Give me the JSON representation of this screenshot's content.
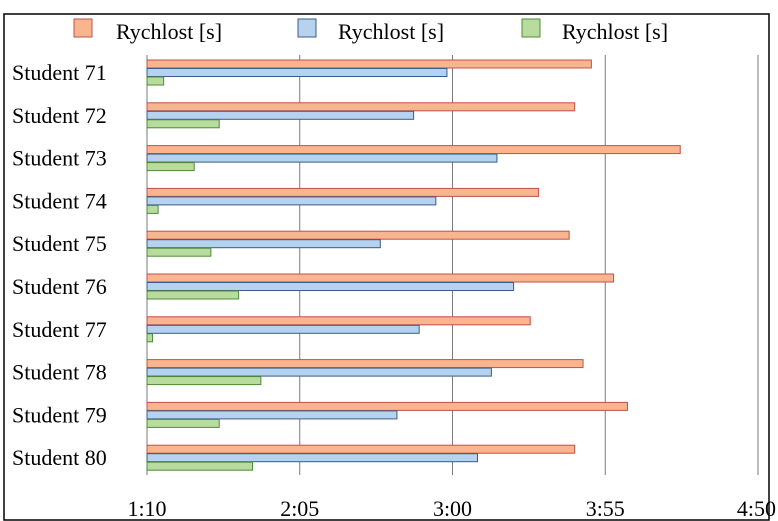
{
  "chart_data": {
    "type": "bar",
    "orientation": "horizontal",
    "categories": [
      "Student 71",
      "Student 72",
      "Student 73",
      "Student 74",
      "Student 75",
      "Student 76",
      "Student 77",
      "Student 78",
      "Student 79",
      "Student 80"
    ],
    "series": [
      {
        "name": "Rychlost [s]",
        "color": "#f9b58d",
        "stroke": "#c0504d",
        "values": [
          230,
          224,
          262,
          211,
          222,
          238,
          208,
          227,
          243,
          224
        ]
      },
      {
        "name": "Rychlost [s]",
        "color": "#b6d2ee",
        "stroke": "#385d8a",
        "values": [
          178,
          166,
          196,
          174,
          154,
          202,
          168,
          194,
          160,
          189
        ]
      },
      {
        "name": "Rychlost [s]",
        "color": "#b8dc9e",
        "stroke": "#4f8a3a",
        "values": [
          76,
          96,
          87,
          74,
          93,
          103,
          72,
          111,
          96,
          108
        ]
      }
    ],
    "x_ticks": [
      "1:10",
      "2:05",
      "3:00",
      "3:55",
      "4:50"
    ],
    "x_tick_values": [
      70,
      125,
      180,
      235,
      290
    ],
    "xlim": [
      70,
      290
    ],
    "x_unit": "seconds (displayed as m:ss)",
    "grid": true,
    "legend_position": "top"
  }
}
